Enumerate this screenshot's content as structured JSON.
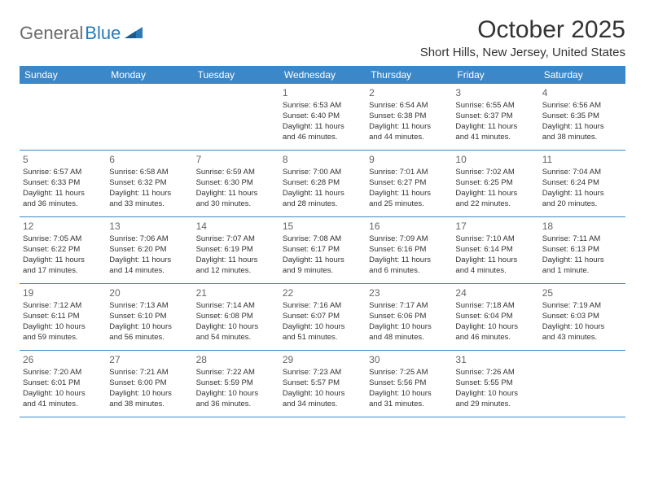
{
  "logo": {
    "part1": "General",
    "part2": "Blue"
  },
  "title": "October 2025",
  "location": "Short Hills, New Jersey, United States",
  "colors": {
    "header_bg": "#3c87c7",
    "header_text": "#ffffff",
    "border": "#3c87c7",
    "logo_gray": "#6b6b6b",
    "logo_blue": "#2a7ab8",
    "text": "#333333",
    "daynum": "#666666"
  },
  "weekdays": [
    "Sunday",
    "Monday",
    "Tuesday",
    "Wednesday",
    "Thursday",
    "Friday",
    "Saturday"
  ],
  "weeks": [
    [
      null,
      null,
      null,
      {
        "d": "1",
        "sr": "Sunrise: 6:53 AM",
        "ss": "Sunset: 6:40 PM",
        "dl1": "Daylight: 11 hours",
        "dl2": "and 46 minutes."
      },
      {
        "d": "2",
        "sr": "Sunrise: 6:54 AM",
        "ss": "Sunset: 6:38 PM",
        "dl1": "Daylight: 11 hours",
        "dl2": "and 44 minutes."
      },
      {
        "d": "3",
        "sr": "Sunrise: 6:55 AM",
        "ss": "Sunset: 6:37 PM",
        "dl1": "Daylight: 11 hours",
        "dl2": "and 41 minutes."
      },
      {
        "d": "4",
        "sr": "Sunrise: 6:56 AM",
        "ss": "Sunset: 6:35 PM",
        "dl1": "Daylight: 11 hours",
        "dl2": "and 38 minutes."
      }
    ],
    [
      {
        "d": "5",
        "sr": "Sunrise: 6:57 AM",
        "ss": "Sunset: 6:33 PM",
        "dl1": "Daylight: 11 hours",
        "dl2": "and 36 minutes."
      },
      {
        "d": "6",
        "sr": "Sunrise: 6:58 AM",
        "ss": "Sunset: 6:32 PM",
        "dl1": "Daylight: 11 hours",
        "dl2": "and 33 minutes."
      },
      {
        "d": "7",
        "sr": "Sunrise: 6:59 AM",
        "ss": "Sunset: 6:30 PM",
        "dl1": "Daylight: 11 hours",
        "dl2": "and 30 minutes."
      },
      {
        "d": "8",
        "sr": "Sunrise: 7:00 AM",
        "ss": "Sunset: 6:28 PM",
        "dl1": "Daylight: 11 hours",
        "dl2": "and 28 minutes."
      },
      {
        "d": "9",
        "sr": "Sunrise: 7:01 AM",
        "ss": "Sunset: 6:27 PM",
        "dl1": "Daylight: 11 hours",
        "dl2": "and 25 minutes."
      },
      {
        "d": "10",
        "sr": "Sunrise: 7:02 AM",
        "ss": "Sunset: 6:25 PM",
        "dl1": "Daylight: 11 hours",
        "dl2": "and 22 minutes."
      },
      {
        "d": "11",
        "sr": "Sunrise: 7:04 AM",
        "ss": "Sunset: 6:24 PM",
        "dl1": "Daylight: 11 hours",
        "dl2": "and 20 minutes."
      }
    ],
    [
      {
        "d": "12",
        "sr": "Sunrise: 7:05 AM",
        "ss": "Sunset: 6:22 PM",
        "dl1": "Daylight: 11 hours",
        "dl2": "and 17 minutes."
      },
      {
        "d": "13",
        "sr": "Sunrise: 7:06 AM",
        "ss": "Sunset: 6:20 PM",
        "dl1": "Daylight: 11 hours",
        "dl2": "and 14 minutes."
      },
      {
        "d": "14",
        "sr": "Sunrise: 7:07 AM",
        "ss": "Sunset: 6:19 PM",
        "dl1": "Daylight: 11 hours",
        "dl2": "and 12 minutes."
      },
      {
        "d": "15",
        "sr": "Sunrise: 7:08 AM",
        "ss": "Sunset: 6:17 PM",
        "dl1": "Daylight: 11 hours",
        "dl2": "and 9 minutes."
      },
      {
        "d": "16",
        "sr": "Sunrise: 7:09 AM",
        "ss": "Sunset: 6:16 PM",
        "dl1": "Daylight: 11 hours",
        "dl2": "and 6 minutes."
      },
      {
        "d": "17",
        "sr": "Sunrise: 7:10 AM",
        "ss": "Sunset: 6:14 PM",
        "dl1": "Daylight: 11 hours",
        "dl2": "and 4 minutes."
      },
      {
        "d": "18",
        "sr": "Sunrise: 7:11 AM",
        "ss": "Sunset: 6:13 PM",
        "dl1": "Daylight: 11 hours",
        "dl2": "and 1 minute."
      }
    ],
    [
      {
        "d": "19",
        "sr": "Sunrise: 7:12 AM",
        "ss": "Sunset: 6:11 PM",
        "dl1": "Daylight: 10 hours",
        "dl2": "and 59 minutes."
      },
      {
        "d": "20",
        "sr": "Sunrise: 7:13 AM",
        "ss": "Sunset: 6:10 PM",
        "dl1": "Daylight: 10 hours",
        "dl2": "and 56 minutes."
      },
      {
        "d": "21",
        "sr": "Sunrise: 7:14 AM",
        "ss": "Sunset: 6:08 PM",
        "dl1": "Daylight: 10 hours",
        "dl2": "and 54 minutes."
      },
      {
        "d": "22",
        "sr": "Sunrise: 7:16 AM",
        "ss": "Sunset: 6:07 PM",
        "dl1": "Daylight: 10 hours",
        "dl2": "and 51 minutes."
      },
      {
        "d": "23",
        "sr": "Sunrise: 7:17 AM",
        "ss": "Sunset: 6:06 PM",
        "dl1": "Daylight: 10 hours",
        "dl2": "and 48 minutes."
      },
      {
        "d": "24",
        "sr": "Sunrise: 7:18 AM",
        "ss": "Sunset: 6:04 PM",
        "dl1": "Daylight: 10 hours",
        "dl2": "and 46 minutes."
      },
      {
        "d": "25",
        "sr": "Sunrise: 7:19 AM",
        "ss": "Sunset: 6:03 PM",
        "dl1": "Daylight: 10 hours",
        "dl2": "and 43 minutes."
      }
    ],
    [
      {
        "d": "26",
        "sr": "Sunrise: 7:20 AM",
        "ss": "Sunset: 6:01 PM",
        "dl1": "Daylight: 10 hours",
        "dl2": "and 41 minutes."
      },
      {
        "d": "27",
        "sr": "Sunrise: 7:21 AM",
        "ss": "Sunset: 6:00 PM",
        "dl1": "Daylight: 10 hours",
        "dl2": "and 38 minutes."
      },
      {
        "d": "28",
        "sr": "Sunrise: 7:22 AM",
        "ss": "Sunset: 5:59 PM",
        "dl1": "Daylight: 10 hours",
        "dl2": "and 36 minutes."
      },
      {
        "d": "29",
        "sr": "Sunrise: 7:23 AM",
        "ss": "Sunset: 5:57 PM",
        "dl1": "Daylight: 10 hours",
        "dl2": "and 34 minutes."
      },
      {
        "d": "30",
        "sr": "Sunrise: 7:25 AM",
        "ss": "Sunset: 5:56 PM",
        "dl1": "Daylight: 10 hours",
        "dl2": "and 31 minutes."
      },
      {
        "d": "31",
        "sr": "Sunrise: 7:26 AM",
        "ss": "Sunset: 5:55 PM",
        "dl1": "Daylight: 10 hours",
        "dl2": "and 29 minutes."
      },
      null
    ]
  ]
}
